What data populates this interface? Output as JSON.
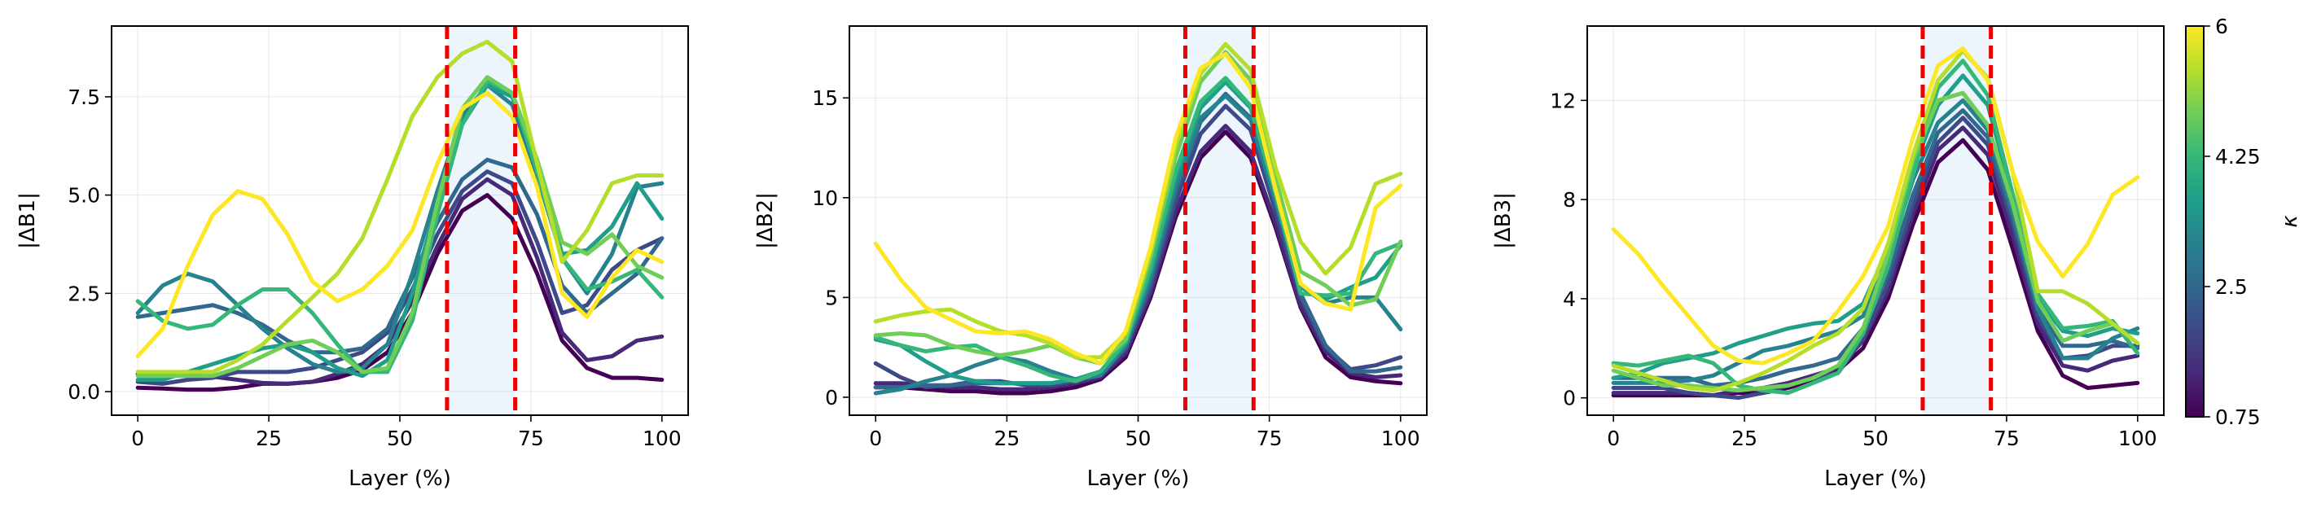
{
  "chart_data": {
    "type": "line",
    "x": [
      0,
      4.76,
      9.52,
      14.29,
      19.05,
      23.81,
      28.57,
      33.33,
      38.1,
      42.86,
      47.62,
      52.38,
      57.14,
      61.9,
      66.67,
      71.43,
      76.19,
      80.95,
      85.71,
      90.48,
      95.24,
      100
    ],
    "xlabel": "Layer (%)",
    "xticks": [
      0,
      25,
      50,
      75,
      100
    ],
    "xlim": [
      -5,
      105
    ],
    "highlight": {
      "start": 59,
      "end": 72,
      "line_color": "#ee0000",
      "fill_color": "#cfe3f7"
    },
    "colorbar": {
      "label": "κ",
      "range": [
        0.75,
        6
      ],
      "ticks": [
        0.75,
        2.5,
        4.25,
        6
      ],
      "tick_labels": [
        "0.75",
        "2.5",
        "4.25",
        "6"
      ],
      "stops": [
        "#440154",
        "#482878",
        "#3e4989",
        "#31688e",
        "#26828e",
        "#1f9e89",
        "#35b779",
        "#6ece58",
        "#b5de2b",
        "#fde725"
      ]
    },
    "kappas": [
      0.75,
      1.33,
      1.92,
      2.5,
      3.08,
      3.67,
      4.25,
      4.83,
      5.42,
      6.0
    ],
    "panels": [
      {
        "ylabel": "|ΔB1|",
        "ylim": [
          -0.6,
          9.3
        ],
        "yticks": [
          0,
          2.5,
          5,
          7.5
        ],
        "ytick_labels": [
          "0.0",
          "2.5",
          "5.0",
          "7.5"
        ],
        "series": [
          {
            "kappa": 0.75,
            "values": [
              0.1,
              0.08,
              0.05,
              0.05,
              0.1,
              0.2,
              0.2,
              0.25,
              0.35,
              0.55,
              1.0,
              2.0,
              3.5,
              4.6,
              5.0,
              4.4,
              3.0,
              1.3,
              0.6,
              0.35,
              0.35,
              0.3
            ]
          },
          {
            "kappa": 1.33,
            "values": [
              0.45,
              0.42,
              0.45,
              0.38,
              0.3,
              0.22,
              0.2,
              0.25,
              0.45,
              0.7,
              1.2,
              2.3,
              3.7,
              4.9,
              5.4,
              5.0,
              3.4,
              1.5,
              0.8,
              0.9,
              1.3,
              1.4
            ]
          },
          {
            "kappa": 1.92,
            "values": [
              0.25,
              0.2,
              0.3,
              0.35,
              0.5,
              0.5,
              0.5,
              0.6,
              0.8,
              1.0,
              1.5,
              2.6,
              4.0,
              5.1,
              5.6,
              5.3,
              3.8,
              2.0,
              2.2,
              3.1,
              3.6,
              3.9
            ]
          },
          {
            "kappa": 2.5,
            "values": [
              1.9,
              2.0,
              2.1,
              2.2,
              2.0,
              1.7,
              1.3,
              1.0,
              1.0,
              1.1,
              1.6,
              2.9,
              4.3,
              5.4,
              5.9,
              5.7,
              4.5,
              2.7,
              2.0,
              2.5,
              3.0,
              3.9
            ]
          },
          {
            "kappa": 3.08,
            "values": [
              2.0,
              2.7,
              3.0,
              2.8,
              2.2,
              1.6,
              1.1,
              0.7,
              0.5,
              0.6,
              1.2,
              3.0,
              5.1,
              7.0,
              7.8,
              7.3,
              5.5,
              3.4,
              2.5,
              3.5,
              5.2,
              5.3
            ]
          },
          {
            "kappa": 3.67,
            "values": [
              0.3,
              0.3,
              0.5,
              0.7,
              0.9,
              1.1,
              1.2,
              1.0,
              0.6,
              0.4,
              0.8,
              2.5,
              4.8,
              6.8,
              7.8,
              7.5,
              5.8,
              3.5,
              3.6,
              4.2,
              5.3,
              4.4
            ]
          },
          {
            "kappa": 4.25,
            "values": [
              2.3,
              1.8,
              1.6,
              1.7,
              2.2,
              2.6,
              2.6,
              2.0,
              1.2,
              0.5,
              0.5,
              1.8,
              4.5,
              6.8,
              7.9,
              7.6,
              5.6,
              3.4,
              2.6,
              2.8,
              3.1,
              2.4
            ]
          },
          {
            "kappa": 4.83,
            "values": [
              0.4,
              0.4,
              0.4,
              0.4,
              0.6,
              0.9,
              1.2,
              1.3,
              1.0,
              0.5,
              0.6,
              2.0,
              4.8,
              7.2,
              8.0,
              7.6,
              5.9,
              3.8,
              3.5,
              4.0,
              3.2,
              2.9
            ]
          },
          {
            "kappa": 5.42,
            "values": [
              0.5,
              0.5,
              0.5,
              0.5,
              0.8,
              1.2,
              1.8,
              2.4,
              3.0,
              3.9,
              5.4,
              7.0,
              8.0,
              8.6,
              8.9,
              8.4,
              5.8,
              3.3,
              4.1,
              5.3,
              5.5,
              5.5
            ]
          },
          {
            "kappa": 6.0,
            "values": [
              0.9,
              1.6,
              3.2,
              4.5,
              5.1,
              4.9,
              4.0,
              2.8,
              2.3,
              2.6,
              3.2,
              4.1,
              5.8,
              7.2,
              7.6,
              7.0,
              5.2,
              2.5,
              1.9,
              2.9,
              3.6,
              3.3
            ]
          }
        ]
      },
      {
        "ylabel": "|ΔB2|",
        "ylim": [
          -0.9,
          18.6
        ],
        "yticks": [
          0,
          5,
          10,
          15
        ],
        "ytick_labels": [
          "0",
          "5",
          "10",
          "15"
        ],
        "series": [
          {
            "kappa": 0.75,
            "values": [
              0.5,
              0.5,
              0.4,
              0.3,
              0.3,
              0.2,
              0.2,
              0.3,
              0.5,
              0.9,
              2.0,
              5.0,
              9.0,
              12.0,
              13.3,
              12.0,
              8.5,
              4.5,
              2.0,
              1.0,
              0.8,
              0.7
            ]
          },
          {
            "kappa": 1.33,
            "values": [
              0.7,
              0.7,
              0.6,
              0.5,
              0.5,
              0.4,
              0.4,
              0.5,
              0.7,
              1.0,
              2.2,
              5.2,
              9.3,
              12.3,
              13.6,
              12.3,
              8.7,
              4.6,
              2.3,
              1.2,
              1.0,
              1.1
            ]
          },
          {
            "kappa": 1.92,
            "values": [
              1.7,
              1.0,
              0.5,
              0.6,
              0.8,
              0.8,
              0.6,
              0.6,
              0.8,
              1.1,
              2.4,
              5.5,
              9.8,
              13.2,
              14.6,
              13.4,
              9.3,
              5.0,
              2.5,
              1.4,
              1.6,
              2.0
            ]
          },
          {
            "kappa": 2.5,
            "values": [
              0.5,
              0.5,
              0.6,
              0.6,
              0.7,
              0.7,
              0.7,
              0.7,
              0.9,
              1.2,
              2.5,
              5.8,
              10.3,
              13.8,
              15.2,
              14.0,
              9.8,
              5.2,
              2.6,
              1.3,
              1.3,
              1.5
            ]
          },
          {
            "kappa": 3.08,
            "values": [
              0.2,
              0.4,
              0.8,
              1.1,
              1.6,
              2.0,
              1.8,
              1.3,
              0.9,
              1.1,
              2.6,
              6.0,
              10.6,
              14.0,
              15.1,
              13.9,
              9.8,
              5.6,
              4.7,
              5.0,
              5.0,
              3.4
            ]
          },
          {
            "kappa": 3.67,
            "values": [
              2.9,
              2.6,
              1.8,
              1.1,
              0.8,
              0.7,
              0.7,
              0.7,
              0.9,
              1.3,
              2.7,
              6.3,
              11.0,
              14.5,
              15.8,
              14.5,
              10.2,
              5.5,
              4.9,
              5.5,
              6.0,
              7.6
            ]
          },
          {
            "kappa": 4.25,
            "values": [
              3.0,
              2.6,
              2.3,
              2.5,
              2.6,
              2.0,
              1.6,
              1.1,
              0.8,
              1.3,
              2.8,
              6.5,
              11.3,
              14.8,
              16.0,
              14.6,
              10.2,
              5.2,
              5.1,
              5.2,
              7.2,
              7.7
            ]
          },
          {
            "kappa": 4.83,
            "values": [
              3.1,
              3.2,
              3.1,
              2.6,
              2.3,
              2.1,
              2.3,
              2.6,
              2.0,
              1.7,
              2.9,
              7.0,
              12.0,
              15.8,
              17.3,
              15.9,
              11.0,
              6.3,
              5.6,
              4.6,
              4.9,
              7.8
            ]
          },
          {
            "kappa": 5.42,
            "values": [
              3.8,
              4.1,
              4.3,
              4.4,
              3.8,
              3.3,
              3.1,
              2.7,
              2.0,
              2.0,
              3.2,
              7.3,
              12.6,
              16.2,
              17.7,
              16.4,
              11.5,
              7.8,
              6.2,
              7.5,
              10.7,
              11.2
            ]
          },
          {
            "kappa": 6.0,
            "values": [
              7.7,
              5.9,
              4.5,
              3.9,
              3.3,
              3.2,
              3.3,
              2.9,
              2.2,
              1.7,
              3.3,
              7.5,
              13.0,
              16.5,
              17.2,
              15.5,
              10.4,
              5.7,
              4.7,
              4.4,
              9.5,
              10.6
            ]
          }
        ]
      },
      {
        "ylabel": "|ΔB3|",
        "ylim": [
          -0.7,
          15.0
        ],
        "yticks": [
          0,
          4,
          8,
          12
        ],
        "ytick_labels": [
          "0",
          "4",
          "8",
          "12"
        ],
        "series": [
          {
            "kappa": 0.75,
            "values": [
              0.1,
              0.1,
              0.1,
              0.1,
              0.1,
              0.2,
              0.2,
              0.4,
              0.7,
              1.1,
              2.0,
              4.0,
              7.0,
              9.5,
              10.4,
              9.2,
              6.0,
              2.7,
              0.9,
              0.4,
              0.5,
              0.6
            ]
          },
          {
            "kappa": 1.33,
            "values": [
              0.2,
              0.2,
              0.2,
              0.2,
              0.1,
              0.3,
              0.4,
              0.6,
              0.9,
              1.2,
              2.3,
              4.3,
              7.4,
              10.0,
              10.9,
              9.8,
              6.5,
              3.0,
              1.3,
              1.1,
              1.5,
              1.7
            ]
          },
          {
            "kappa": 1.92,
            "values": [
              0.4,
              0.4,
              0.4,
              0.2,
              0.1,
              0.0,
              0.2,
              0.5,
              0.8,
              1.0,
              2.4,
              4.6,
              7.8,
              10.3,
              11.3,
              10.2,
              7.0,
              3.3,
              1.6,
              1.7,
              2.1,
              2.1
            ]
          },
          {
            "kappa": 2.5,
            "values": [
              0.8,
              0.8,
              0.8,
              0.8,
              0.5,
              0.6,
              0.8,
              1.1,
              1.3,
              1.6,
              2.8,
              5.0,
              8.2,
              10.7,
              11.6,
              10.5,
              7.3,
              3.6,
              2.1,
              2.1,
              2.3,
              2.0
            ]
          },
          {
            "kappa": 3.08,
            "values": [
              0.6,
              0.6,
              0.6,
              0.7,
              0.9,
              1.4,
              1.9,
              2.1,
              2.4,
              2.7,
              3.3,
              5.6,
              8.8,
              11.1,
              12.0,
              10.8,
              7.5,
              3.6,
              1.6,
              1.6,
              2.4,
              2.8
            ]
          },
          {
            "kappa": 3.67,
            "values": [
              0.8,
              1.0,
              1.4,
              1.6,
              1.8,
              2.2,
              2.5,
              2.8,
              3.0,
              3.1,
              3.8,
              6.0,
              9.2,
              11.8,
              13.0,
              11.8,
              8.1,
              4.0,
              2.7,
              2.5,
              2.8,
              2.6
            ]
          },
          {
            "kappa": 4.25,
            "values": [
              1.4,
              1.3,
              1.5,
              1.7,
              1.4,
              0.5,
              0.3,
              0.2,
              0.6,
              1.0,
              2.6,
              5.3,
              9.0,
              12.5,
              13.6,
              12.2,
              8.2,
              4.2,
              2.8,
              2.9,
              3.1,
              1.8
            ]
          },
          {
            "kappa": 4.83,
            "values": [
              1.1,
              0.8,
              0.5,
              0.5,
              0.4,
              0.3,
              0.4,
              0.5,
              0.8,
              1.3,
              2.8,
              5.8,
              9.6,
              12.0,
              12.3,
              11.0,
              7.8,
              3.9,
              2.3,
              2.7,
              3.0,
              2.2
            ]
          },
          {
            "kappa": 5.42,
            "values": [
              1.3,
              1.0,
              0.7,
              0.4,
              0.3,
              0.6,
              1.0,
              1.5,
              2.1,
              2.6,
              3.6,
              6.2,
              9.8,
              12.8,
              14.0,
              12.9,
              9.1,
              4.3,
              4.3,
              3.8,
              3.0,
              2.2
            ]
          },
          {
            "kappa": 6.0,
            "values": [
              6.8,
              5.8,
              4.5,
              3.3,
              2.1,
              1.5,
              1.4,
              1.8,
              2.3,
              3.5,
              4.9,
              6.9,
              10.5,
              13.4,
              14.1,
              12.8,
              9.1,
              6.3,
              4.9,
              6.2,
              8.2,
              8.9
            ]
          }
        ]
      }
    ]
  }
}
